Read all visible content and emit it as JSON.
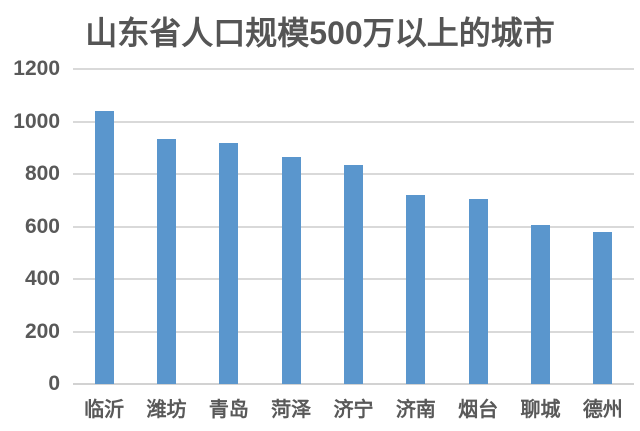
{
  "page": {
    "background_color": "#ffffff"
  },
  "chart_data": {
    "type": "bar",
    "title": "山东省人口规模500万以上的城市",
    "categories": [
      "临沂",
      "潍坊",
      "青岛",
      "菏泽",
      "济宁",
      "济南",
      "烟台",
      "聊城",
      "德州"
    ],
    "values": [
      1040,
      935,
      920,
      865,
      835,
      720,
      705,
      605,
      580
    ],
    "xlabel": "",
    "ylabel": "",
    "ylim": [
      0,
      1200
    ],
    "yticks": [
      0,
      200,
      400,
      600,
      800,
      1000,
      1200
    ],
    "grid": "horizontal-only",
    "legend": "none",
    "bar_color": "#5a96cd",
    "gridline_color": "#d9d9d9",
    "axis_line_color": "#d2d2d2",
    "tick_label_color": "#595959",
    "title_color": "#555555"
  }
}
